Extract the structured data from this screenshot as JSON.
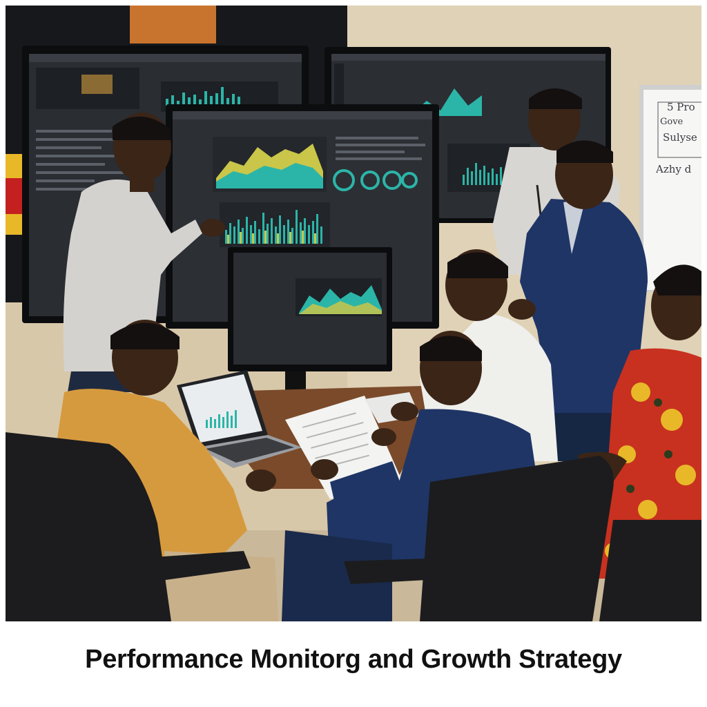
{
  "caption": {
    "text": "Performance Monitorg and Growth Strategy"
  },
  "whiteboard": {
    "lines": [
      "5 Pro",
      "Gove",
      "Sulyse",
      "Azhy d"
    ]
  },
  "colors": {
    "wall": "#d9c9ad",
    "screen_dark": "#1f2226",
    "chart_teal": "#2bb5a8",
    "chart_yellow": "#c9c64a",
    "shirt_mustard": "#d69a3e",
    "suit_navy": "#1f3566",
    "dress_red": "#c8311f"
  }
}
